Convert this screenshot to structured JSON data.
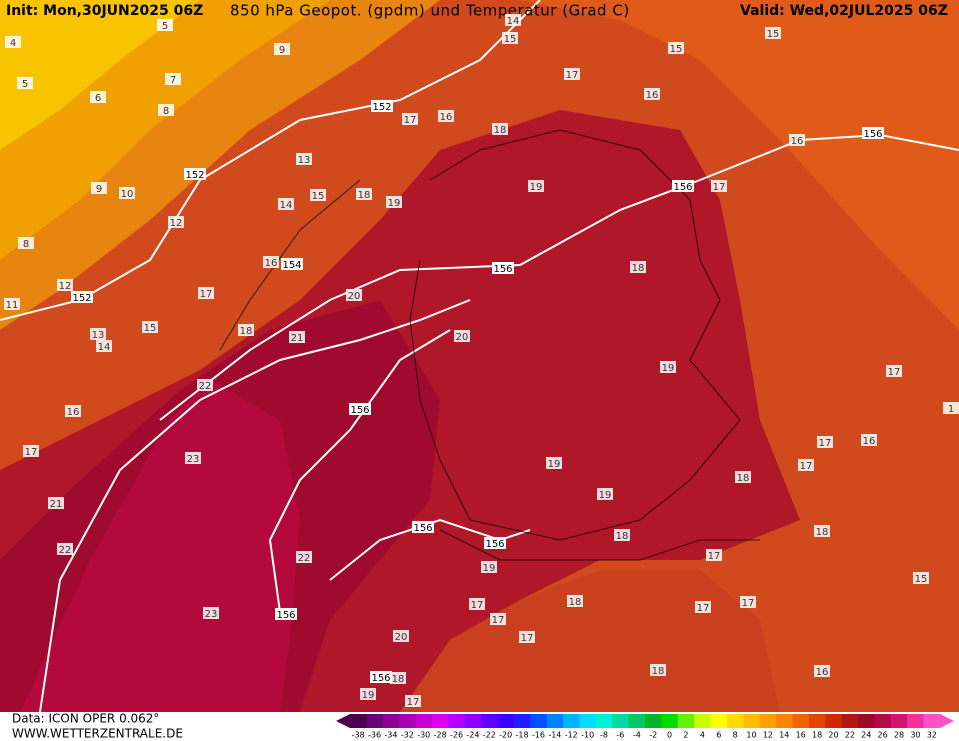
{
  "header": {
    "init": "Init: Mon,30JUN2025 06Z",
    "title": "850 hPa Geopot. (gpdm) und Temperatur (Grad C)",
    "valid": "Valid: Wed,02JUL2025 06Z"
  },
  "footer": {
    "data": "Data: ICON OPER 0.062°",
    "url": "WWW.WETTERZENTRALE.DE"
  },
  "colorbar": {
    "ticks": [
      -38,
      -36,
      -34,
      -32,
      -30,
      -28,
      -26,
      -24,
      -22,
      -20,
      -18,
      -16,
      -14,
      -12,
      -10,
      -8,
      -6,
      -4,
      -2,
      0,
      2,
      4,
      6,
      8,
      10,
      12,
      14,
      16,
      18,
      20,
      22,
      24,
      26,
      28,
      30,
      32
    ]
  },
  "temperature_labels": [
    14,
    15,
    15,
    15,
    5,
    4,
    9,
    5,
    7,
    6,
    8,
    17,
    16,
    17,
    16,
    18,
    16,
    13,
    9,
    10,
    15,
    18,
    19,
    19,
    17,
    14,
    12,
    8,
    16,
    18,
    12,
    17,
    20,
    11,
    15,
    18,
    13,
    14,
    21,
    20,
    19,
    17,
    22,
    16,
    1,
    17,
    16,
    17,
    23,
    19,
    17,
    18,
    19,
    21,
    18,
    18,
    22,
    22,
    17,
    19,
    15,
    17,
    18,
    17,
    17,
    17,
    23,
    17,
    20,
    18,
    16,
    18,
    19,
    17
  ],
  "geopotential_labels": [
    152,
    152,
    156,
    156,
    154,
    152,
    156,
    156,
    156,
    156,
    156,
    156
  ]
}
